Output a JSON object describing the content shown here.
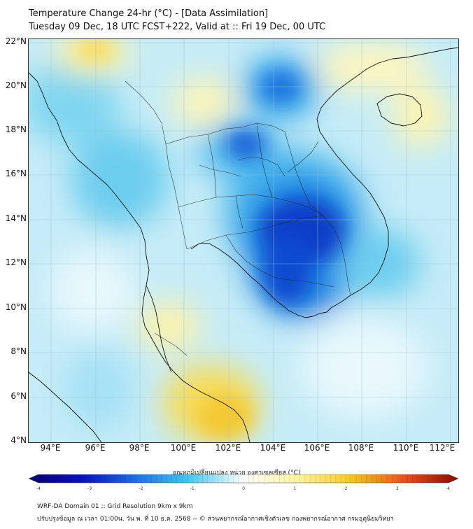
{
  "header": {
    "title": "Temperature Change 24-hr (°C) - [Data Assimilation]",
    "subtitle": "Tuesday 09 Dec, 18 UTC FCST+222, Valid at :: Fri 19 Dec, 00 UTC"
  },
  "map": {
    "lat_labels": [
      "22°N",
      "20°N",
      "18°N",
      "16°N",
      "14°N",
      "12°N",
      "10°N",
      "8°N",
      "6°N",
      "4°N"
    ],
    "lon_labels": [
      "94°E",
      "96°E",
      "98°E",
      "100°E",
      "102°E",
      "104°E",
      "106°E",
      "108°E",
      "110°E",
      "112°E"
    ]
  },
  "colorbar": {
    "title": "อุณหภูมิเปลี่ยนแปลง หน่วย องศาเซลเซียส (°C)",
    "ticks": [
      "-4",
      "-3",
      "-2",
      "-1",
      "0",
      "1",
      "2",
      "3",
      "4"
    ],
    "range": [
      -4,
      4
    ],
    "colors": {
      "neg4": "#08006a",
      "neg3": "#0a10c0",
      "neg2": "#1e6ee6",
      "neg1": "#48c8f0",
      "zero": "#ffffff",
      "pos1": "#fff4a0",
      "pos2": "#f6c823",
      "pos3": "#e8501e",
      "pos4": "#8a0a00"
    }
  },
  "footer": {
    "line1": "WRF-DA Domain 01 :: Grid Resolution 9km x 9km",
    "line2": "ปรับปรุงข้อมูล ณ เวลา 01:00น. วัน พ. ที่ 10 ธ.ค. 2568 -- © ส่วนพยากรณ์อากาศเชิงตัวเลข กองพยากรณ์อากาศ กรมอุตุนิยมวิทยา"
  }
}
